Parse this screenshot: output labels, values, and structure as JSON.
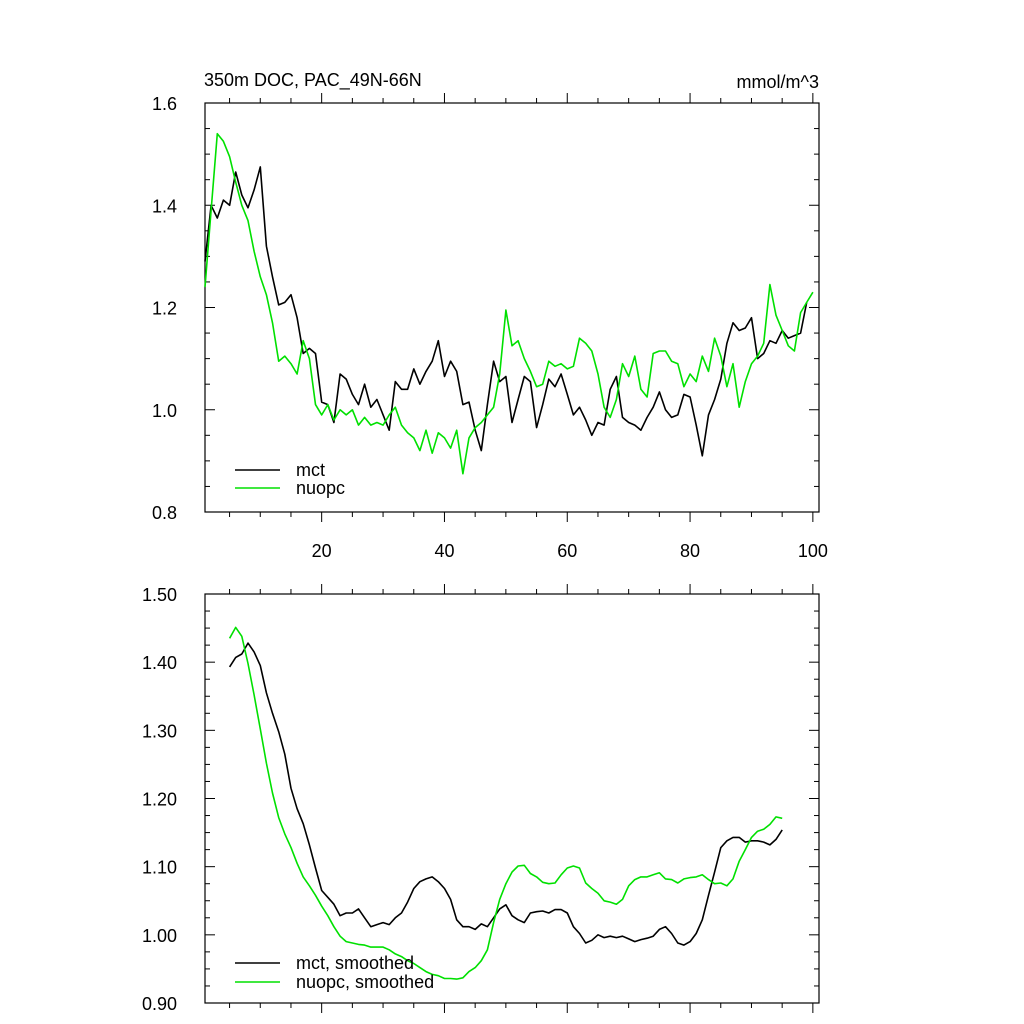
{
  "colors": {
    "series1": "#000000",
    "series2": "#00e000",
    "frame": "#000000",
    "background": "#ffffff"
  },
  "chart_data": [
    {
      "type": "line",
      "title": "350m DOC, PAC_49N-66N",
      "units": "mmol/m^3",
      "xlabel": "",
      "ylabel": "",
      "xlim": [
        1,
        101
      ],
      "ylim": [
        0.8,
        1.6
      ],
      "x_ticks": [
        20,
        40,
        60,
        80,
        100
      ],
      "x_tick_labels": [
        "20",
        "40",
        "60",
        "80",
        "100"
      ],
      "y_ticks": [
        0.8,
        1.0,
        1.2,
        1.4,
        1.6
      ],
      "y_tick_labels": [
        "0.8",
        "1.0",
        "1.2",
        "1.4",
        "1.6"
      ],
      "grid": false,
      "legend": "bottom-left",
      "x_start": 1,
      "series": [
        {
          "name": "mct",
          "color": "#000000",
          "values": [
            1.29,
            1.4,
            1.375,
            1.41,
            1.4,
            1.465,
            1.42,
            1.395,
            1.43,
            1.475,
            1.32,
            1.26,
            1.205,
            1.21,
            1.225,
            1.18,
            1.11,
            1.12,
            1.11,
            1.015,
            1.01,
            0.975,
            1.07,
            1.06,
            1.03,
            1.01,
            1.05,
            1.005,
            1.02,
            0.99,
            0.96,
            1.055,
            1.04,
            1.04,
            1.08,
            1.05,
            1.075,
            1.095,
            1.135,
            1.065,
            1.095,
            1.075,
            1.01,
            1.015,
            0.96,
            0.92,
            1.01,
            1.095,
            1.055,
            1.065,
            0.975,
            1.02,
            1.065,
            1.055,
            0.965,
            1.01,
            1.06,
            1.045,
            1.07,
            1.03,
            0.99,
            1.005,
            0.98,
            0.95,
            0.975,
            0.97,
            1.04,
            1.065,
            0.985,
            0.975,
            0.97,
            0.96,
            0.985,
            1.005,
            1.035,
            1.0,
            0.985,
            0.99,
            1.03,
            1.025,
            0.97,
            0.91,
            0.99,
            1.02,
            1.06,
            1.13,
            1.17,
            1.155,
            1.16,
            1.18,
            1.1,
            1.11,
            1.135,
            1.13,
            1.155,
            1.14,
            1.145,
            1.15,
            1.21
          ]
        },
        {
          "name": "nuopc",
          "color": "#00e000",
          "values": [
            1.24,
            1.39,
            1.54,
            1.525,
            1.495,
            1.445,
            1.4,
            1.37,
            1.31,
            1.26,
            1.225,
            1.17,
            1.095,
            1.105,
            1.09,
            1.07,
            1.135,
            1.1,
            1.01,
            0.99,
            1.01,
            0.98,
            1.0,
            0.99,
            1.0,
            0.97,
            0.985,
            0.97,
            0.975,
            0.97,
            0.99,
            1.005,
            0.97,
            0.955,
            0.945,
            0.92,
            0.96,
            0.915,
            0.955,
            0.945,
            0.925,
            0.96,
            0.875,
            0.945,
            0.965,
            0.975,
            0.99,
            1.005,
            1.07,
            1.195,
            1.125,
            1.135,
            1.1,
            1.075,
            1.045,
            1.05,
            1.095,
            1.085,
            1.09,
            1.08,
            1.085,
            1.14,
            1.13,
            1.115,
            1.07,
            1.005,
            0.985,
            1.02,
            1.09,
            1.065,
            1.105,
            1.04,
            1.025,
            1.11,
            1.115,
            1.115,
            1.095,
            1.09,
            1.045,
            1.07,
            1.055,
            1.105,
            1.075,
            1.14,
            1.105,
            1.045,
            1.09,
            1.005,
            1.055,
            1.09,
            1.105,
            1.13,
            1.245,
            1.185,
            1.155,
            1.125,
            1.115,
            1.19,
            1.21,
            1.23
          ]
        }
      ]
    },
    {
      "type": "line",
      "title": "",
      "xlabel": "",
      "ylabel": "",
      "xlim": [
        1,
        101
      ],
      "ylim": [
        0.9,
        1.5
      ],
      "x_ticks": [
        20,
        40,
        60,
        80,
        100
      ],
      "y_ticks": [
        0.9,
        1.0,
        1.1,
        1.2,
        1.3,
        1.4,
        1.5
      ],
      "y_tick_labels": [
        "0.90",
        "1.00",
        "1.10",
        "1.20",
        "1.30",
        "1.40",
        "1.50"
      ],
      "grid": false,
      "legend": "bottom-left",
      "x_start": 5,
      "series": [
        {
          "name": "mct, smoothed",
          "color": "#000000",
          "values": [
            1.393,
            1.407,
            1.412,
            1.428,
            1.415,
            1.395,
            1.355,
            1.325,
            1.298,
            1.265,
            1.215,
            1.185,
            1.163,
            1.132,
            1.098,
            1.065,
            1.055,
            1.045,
            1.028,
            1.032,
            1.032,
            1.038,
            1.025,
            1.012,
            1.015,
            1.018,
            1.015,
            1.025,
            1.032,
            1.048,
            1.068,
            1.078,
            1.082,
            1.085,
            1.078,
            1.068,
            1.052,
            1.022,
            1.012,
            1.012,
            1.008,
            1.016,
            1.012,
            1.025,
            1.038,
            1.044,
            1.028,
            1.022,
            1.018,
            1.032,
            1.034,
            1.035,
            1.032,
            1.037,
            1.037,
            1.032,
            1.012,
            1.002,
            0.988,
            0.992,
            1.0,
            0.996,
            0.998,
            0.996,
            0.998,
            0.994,
            0.99,
            0.993,
            0.995,
            0.998,
            1.008,
            1.012,
            1.002,
            0.988,
            0.985,
            0.99,
            1.002,
            1.022,
            1.058,
            1.092,
            1.128,
            1.138,
            1.143,
            1.143,
            1.136,
            1.138,
            1.138,
            1.136,
            1.132,
            1.14,
            1.154
          ]
        },
        {
          "name": "nuopc, smoothed",
          "color": "#00e000",
          "values": [
            1.435,
            1.451,
            1.438,
            1.398,
            1.352,
            1.302,
            1.252,
            1.208,
            1.172,
            1.148,
            1.128,
            1.105,
            1.085,
            1.072,
            1.058,
            1.042,
            1.028,
            1.012,
            0.998,
            0.99,
            0.988,
            0.986,
            0.985,
            0.982,
            0.982,
            0.982,
            0.978,
            0.972,
            0.968,
            0.962,
            0.958,
            0.952,
            0.946,
            0.942,
            0.94,
            0.936,
            0.936,
            0.935,
            0.937,
            0.946,
            0.952,
            0.962,
            0.978,
            1.018,
            1.052,
            1.075,
            1.092,
            1.101,
            1.102,
            1.09,
            1.085,
            1.077,
            1.075,
            1.076,
            1.088,
            1.098,
            1.101,
            1.098,
            1.076,
            1.068,
            1.061,
            1.05,
            1.048,
            1.045,
            1.052,
            1.072,
            1.081,
            1.085,
            1.085,
            1.088,
            1.091,
            1.082,
            1.081,
            1.076,
            1.082,
            1.084,
            1.085,
            1.088,
            1.081,
            1.075,
            1.076,
            1.072,
            1.082,
            1.108,
            1.125,
            1.143,
            1.152,
            1.155,
            1.162,
            1.173,
            1.171
          ]
        }
      ]
    }
  ]
}
